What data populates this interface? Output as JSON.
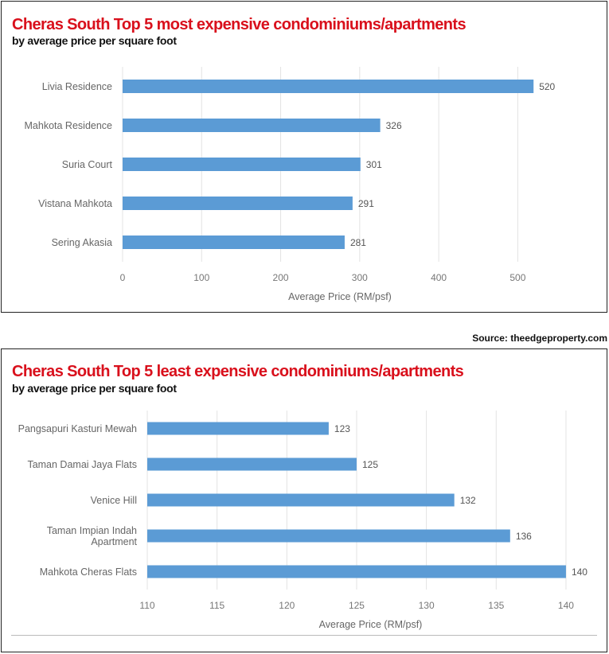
{
  "source_text": "Source: theedgeproperty.com",
  "chart_data": [
    {
      "type": "bar",
      "orientation": "horizontal",
      "title": "Cheras South Top 5 most expensive condominiums/apartments",
      "subtitle": "by average price per square foot",
      "categories": [
        "Livia Residence",
        "Mahkota Residence",
        "Suria Court",
        "Vistana Mahkota",
        "Sering Akasia"
      ],
      "values": [
        520,
        326,
        301,
        291,
        281
      ],
      "xlabel": "Average Price (RM/psf)",
      "ylabel": "",
      "xlim": [
        0,
        550
      ],
      "xticks": [
        0,
        100,
        200,
        300,
        400,
        500
      ],
      "grid": true,
      "bar_color": "#5b9bd5"
    },
    {
      "type": "bar",
      "orientation": "horizontal",
      "title": "Cheras South Top 5 least expensive condominiums/apartments",
      "subtitle": "by average price per square foot",
      "categories": [
        "Pangsapuri Kasturi Mewah",
        "Taman Damai Jaya Flats",
        "Venice Hill",
        "Taman Impian Indah Apartment",
        "Mahkota Cheras Flats"
      ],
      "values": [
        123,
        125,
        132,
        136,
        140
      ],
      "xlabel": "Average Price (RM/psf)",
      "ylabel": "",
      "xlim": [
        110,
        142
      ],
      "xticks": [
        110,
        115,
        120,
        125,
        130,
        135,
        140
      ],
      "grid": true,
      "bar_color": "#5b9bd5"
    }
  ]
}
